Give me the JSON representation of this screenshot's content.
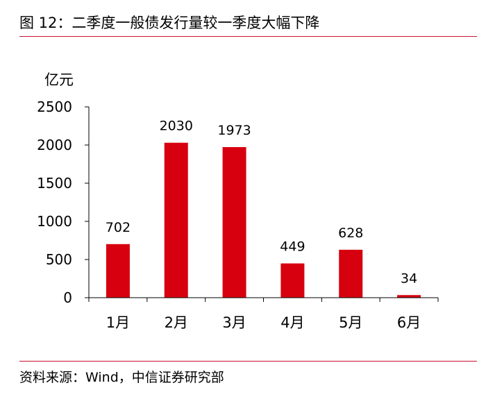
{
  "title": "图 12：二季度一般债发行量较一季度大幅下降",
  "source": "资料来源：Wind，中信证券研究部",
  "colors": {
    "bar": "#d7000f",
    "rule": "#c8102e",
    "axis": "#000000"
  },
  "chart_data": {
    "type": "bar",
    "title": "图 12：二季度一般债发行量较一季度大幅下降",
    "ylabel": "亿元",
    "xlabel": "",
    "categories": [
      "1月",
      "2月",
      "3月",
      "4月",
      "5月",
      "6月"
    ],
    "values": [
      702,
      2030,
      1973,
      449,
      628,
      34
    ],
    "ylim": [
      0,
      2500
    ],
    "yticks": [
      0,
      500,
      1000,
      1500,
      2000,
      2500
    ],
    "grid": false,
    "legend": "none"
  }
}
